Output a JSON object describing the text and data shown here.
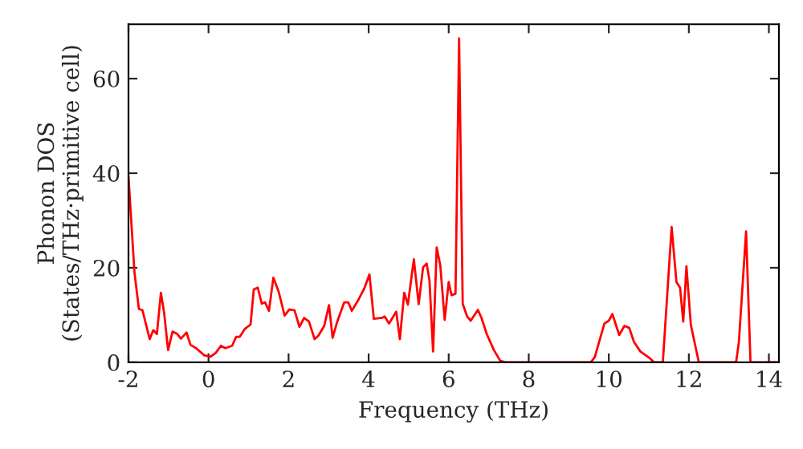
{
  "chart_data": {
    "type": "line",
    "xlabel": "Frequency (THz)",
    "ylabel": "Phonon DOS\n(States/THz·primitive cell)",
    "xlim": [
      -2,
      14.25
    ],
    "ylim": [
      0,
      71.5
    ],
    "xticks": [
      -2,
      0,
      2,
      4,
      6,
      8,
      10,
      12,
      14
    ],
    "yticks": [
      0,
      20,
      40,
      60
    ],
    "grid": false,
    "line_style": "solid",
    "marker": "none",
    "series": [
      {
        "color": "#ff0000",
        "x": [
          -2.0,
          -1.85,
          -1.74,
          -1.65,
          -1.47,
          -1.38,
          -1.29,
          -1.19,
          -1.11,
          -1.01,
          -0.9,
          -0.78,
          -0.69,
          -0.55,
          -0.45,
          -0.31,
          -0.11,
          0.05,
          0.18,
          0.31,
          0.42,
          0.59,
          0.69,
          0.78,
          0.91,
          1.05,
          1.13,
          1.23,
          1.33,
          1.41,
          1.51,
          1.62,
          1.75,
          1.9,
          2.02,
          2.15,
          2.27,
          2.39,
          2.51,
          2.65,
          2.75,
          2.89,
          3.01,
          3.1,
          3.2,
          3.39,
          3.49,
          3.58,
          3.75,
          3.89,
          4.02,
          4.13,
          4.33,
          4.4,
          4.51,
          4.69,
          4.78,
          4.89,
          4.98,
          5.13,
          5.25,
          5.36,
          5.45,
          5.52,
          5.61,
          5.7,
          5.79,
          5.9,
          6.0,
          6.07,
          6.17,
          6.26,
          6.35,
          6.46,
          6.55,
          6.73,
          6.82,
          6.95,
          7.13,
          7.29,
          7.42,
          9.55,
          9.65,
          9.89,
          10.0,
          10.09,
          10.26,
          10.39,
          10.51,
          10.63,
          10.79,
          11.02,
          11.13,
          11.35,
          11.57,
          11.69,
          11.78,
          11.86,
          11.94,
          12.05,
          12.25,
          13.18,
          13.25,
          13.43,
          13.54,
          14.25
        ],
        "values": [
          39.3,
          19,
          11.3,
          11,
          4.9,
          6.8,
          6,
          14.7,
          10.5,
          2.6,
          6.5,
          6,
          5,
          6.3,
          3.7,
          3,
          1.5,
          1.2,
          2,
          3.5,
          3,
          3.5,
          5.4,
          5.4,
          7.1,
          8,
          15.4,
          15.8,
          12.4,
          12.7,
          10.9,
          17.9,
          15,
          9.9,
          11.2,
          11,
          7.5,
          9.4,
          8.6,
          4.9,
          5.7,
          7.7,
          12.1,
          5.2,
          8.2,
          12.7,
          12.7,
          10.9,
          13.3,
          15.6,
          18.6,
          9.2,
          9.4,
          9.7,
          8.2,
          10.7,
          4.9,
          14.7,
          12.2,
          21.8,
          12.3,
          20.1,
          20.9,
          17.3,
          2.3,
          24.3,
          20.5,
          9,
          17,
          14.2,
          14.5,
          68.5,
          12.4,
          9.7,
          8.8,
          11.1,
          9.4,
          6,
          2.6,
          0.3,
          0,
          0,
          1.1,
          8.2,
          8.8,
          10.2,
          5.8,
          7.7,
          7.3,
          4.3,
          2.3,
          0.9,
          0,
          0,
          28.6,
          17,
          15.8,
          8.6,
          20.3,
          7.9,
          0,
          0,
          4.3,
          27.7,
          0,
          0
        ]
      }
    ]
  }
}
